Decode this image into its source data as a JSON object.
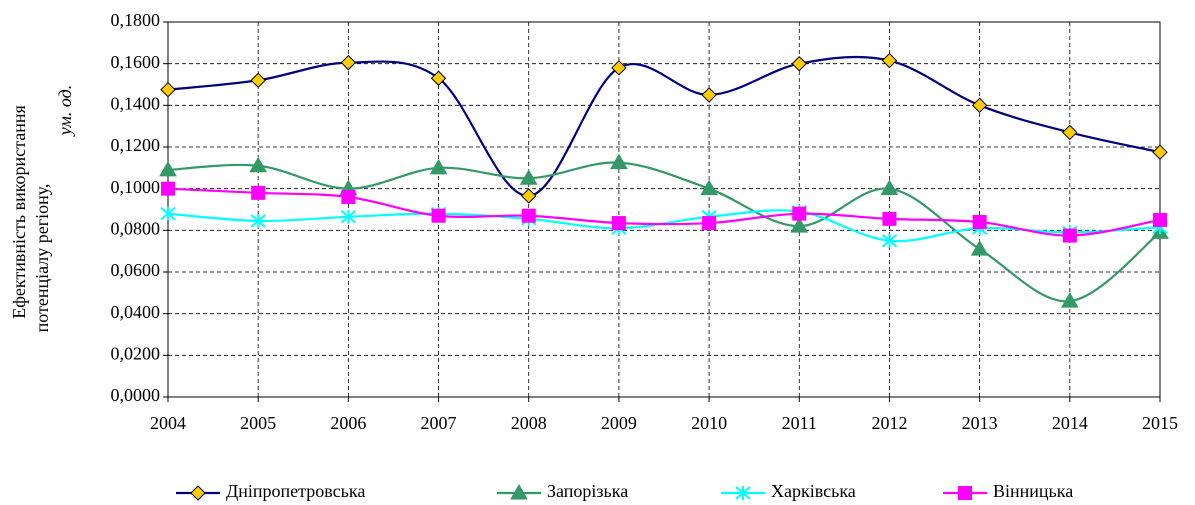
{
  "chart_data": {
    "type": "line",
    "ylabel": {
      "lines": [
        "Ефективність використання",
        "потенціалу регіону,"
      ],
      "unit": "ум. од."
    },
    "x": [
      2004,
      2005,
      2006,
      2007,
      2008,
      2009,
      2010,
      2011,
      2012,
      2013,
      2014,
      2015
    ],
    "xlim": [
      2004,
      2015
    ],
    "xticks": [
      2004,
      2005,
      2006,
      2007,
      2008,
      2009,
      2010,
      2011,
      2012,
      2013,
      2014,
      2015
    ],
    "ylim": [
      0,
      0.18
    ],
    "yticks": [
      {
        "value": 0,
        "label": "0,0000"
      },
      {
        "value": 0.02,
        "label": "0,0200"
      },
      {
        "value": 0.04,
        "label": "0,0400"
      },
      {
        "value": 0.06,
        "label": "0,0600"
      },
      {
        "value": 0.08,
        "label": "0,0800"
      },
      {
        "value": 0.1,
        "label": "0,1000"
      },
      {
        "value": 0.12,
        "label": "0,1200"
      },
      {
        "value": 0.14,
        "label": "0,1400"
      },
      {
        "value": 0.16,
        "label": "0,1600"
      },
      {
        "value": 0.18,
        "label": "0,1800"
      }
    ],
    "grid": true,
    "smooth": true,
    "legend": "bottom",
    "series": [
      {
        "name": "Дніпропетровська",
        "color": "#000080",
        "marker": "diamond",
        "marker_color": "#ffcc00",
        "values": [
          0.1475,
          0.152,
          0.1605,
          0.153,
          0.0965,
          0.158,
          0.145,
          0.16,
          0.1615,
          0.14,
          0.127,
          0.1175
        ]
      },
      {
        "name": "Запорізька",
        "color": "#339966",
        "marker": "triangle",
        "marker_color": "#339966",
        "values": [
          0.109,
          0.111,
          0.1,
          0.11,
          0.105,
          0.1125,
          0.1,
          0.082,
          0.1,
          0.071,
          0.046,
          0.079
        ]
      },
      {
        "name": "Харківська",
        "color": "#00ffff",
        "marker": "star",
        "marker_color": "#00ffff",
        "values": [
          0.088,
          0.0845,
          0.0865,
          0.088,
          0.0855,
          0.081,
          0.0865,
          0.089,
          0.075,
          0.081,
          0.079,
          0.0815
        ]
      },
      {
        "name": "Вінницька",
        "color": "#ff00ff",
        "marker": "square",
        "marker_color": "#ff00ff",
        "values": [
          0.1,
          0.098,
          0.096,
          0.087,
          0.087,
          0.0835,
          0.0835,
          0.088,
          0.0855,
          0.084,
          0.0775,
          0.085
        ]
      }
    ]
  }
}
